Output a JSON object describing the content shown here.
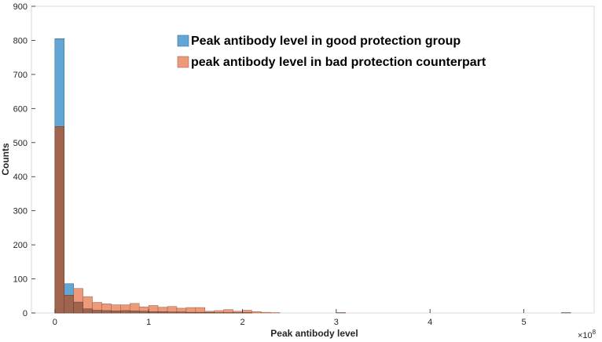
{
  "chart_data": {
    "type": "bar",
    "subtype": "overlaid-histogram",
    "title": "",
    "xlabel": "Peak antibody level",
    "ylabel": "Counts",
    "x_exponent_label": "×10",
    "x_exponent_power": "8",
    "xlim": [
      -0.25,
      5.75
    ],
    "ylim": [
      0,
      900
    ],
    "bin_width": 0.1,
    "bin_starts": [
      0.0,
      0.1,
      0.2,
      0.3,
      0.4,
      0.5,
      0.6,
      0.7,
      0.8,
      0.9,
      1.0,
      1.1,
      1.2,
      1.3,
      1.4,
      1.5,
      1.6,
      1.7,
      1.8,
      1.9,
      2.0,
      2.1,
      2.2,
      2.3
    ],
    "x_ticks": [
      {
        "value": 0,
        "label": "0"
      },
      {
        "value": 1,
        "label": "1"
      },
      {
        "value": 2,
        "label": "2"
      },
      {
        "value": 3,
        "label": "3"
      },
      {
        "value": 4,
        "label": "4"
      },
      {
        "value": 5,
        "label": "5"
      }
    ],
    "y_ticks": [
      {
        "value": 0,
        "label": "0"
      },
      {
        "value": 100,
        "label": "100"
      },
      {
        "value": 200,
        "label": "200"
      },
      {
        "value": 300,
        "label": "300"
      },
      {
        "value": 400,
        "label": "400"
      },
      {
        "value": 500,
        "label": "500"
      },
      {
        "value": 600,
        "label": "600"
      },
      {
        "value": 700,
        "label": "700"
      },
      {
        "value": 800,
        "label": "800"
      },
      {
        "value": 900,
        "label": "900"
      }
    ],
    "grid": false,
    "legend_position": "top-right",
    "overlap_color": "#a0634e",
    "series": [
      {
        "name": "Peak antibody level in good protection group",
        "color": "#62a6d6",
        "values": [
          805,
          86,
          32,
          12,
          8,
          7,
          6,
          7,
          6,
          5,
          4,
          4,
          3,
          3,
          2,
          2,
          2,
          1,
          1,
          1,
          1,
          0,
          0,
          0
        ]
      },
      {
        "name": "peak antibody level in bad protection counterpart",
        "color": "#ec9a79",
        "values": [
          547,
          52,
          72,
          48,
          31,
          27,
          24,
          24,
          28,
          18,
          22,
          17,
          19,
          14,
          16,
          16,
          5,
          7,
          10,
          5,
          8,
          4,
          2,
          1
        ]
      }
    ],
    "outlier_bins": [
      {
        "x": 3.0,
        "value": 1
      },
      {
        "x": 5.4,
        "value": 1
      }
    ]
  },
  "legend": {
    "good_label": "Peak antibody level in good protection group",
    "bad_label": "peak antibody level in bad protection counterpart"
  },
  "axes": {
    "xlabel": "Peak antibody level",
    "ylabel": "Counts",
    "exp_base": "×10",
    "exp_power": "8"
  }
}
